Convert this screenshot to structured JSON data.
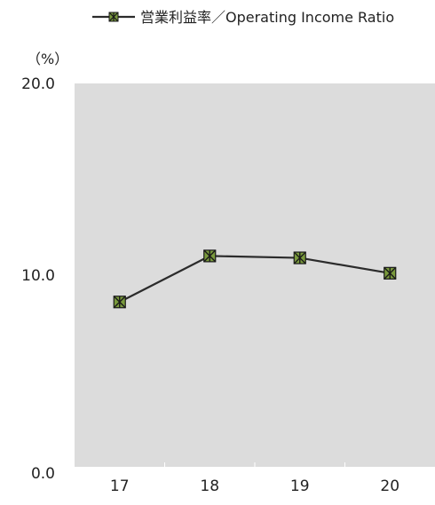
{
  "chart_data": {
    "type": "line",
    "unit_label": "（%）",
    "categories": [
      "17",
      "18",
      "19",
      "20"
    ],
    "series": [
      {
        "name": "営業利益率／Operating Income Ratio",
        "values": [
          8.6,
          11.0,
          10.9,
          10.1
        ]
      }
    ],
    "ylim": [
      0,
      20
    ],
    "yticks": [
      "0.0",
      "10.0",
      "20.0"
    ],
    "grid": false,
    "legend_position": "top-right",
    "colors": {
      "plot_background": "#dcdcdc",
      "line": "#2b2b2b",
      "marker_fill": "#7a9a3c",
      "marker_stroke": "#1a1a1a"
    }
  }
}
